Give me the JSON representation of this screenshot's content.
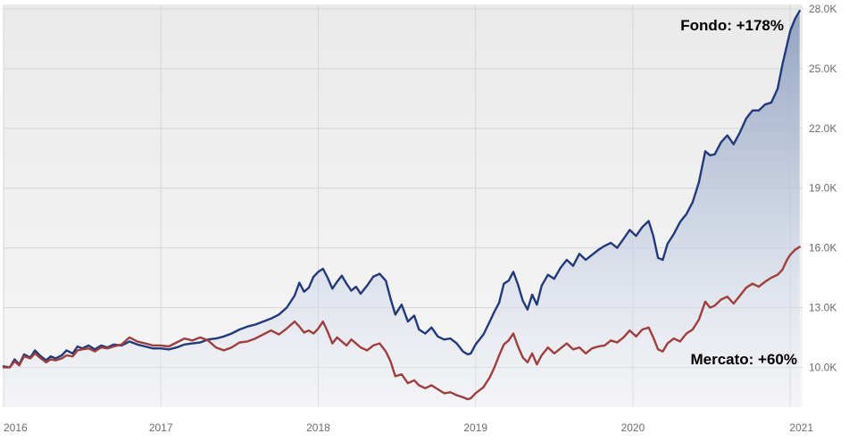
{
  "chart_data": {
    "type": "line",
    "title": "",
    "xlabel": "",
    "ylabel": "",
    "xlim": [
      2016.0,
      2021.07
    ],
    "ylim": [
      8000,
      28000
    ],
    "grid": true,
    "x_ticks": [
      {
        "value": 2016,
        "label": "2016"
      },
      {
        "value": 2017,
        "label": "2017"
      },
      {
        "value": 2018,
        "label": "2018"
      },
      {
        "value": 2019,
        "label": "2019"
      },
      {
        "value": 2020,
        "label": "2020"
      },
      {
        "value": 2021,
        "label": "2021"
      }
    ],
    "y_ticks": [
      {
        "value": 10000,
        "label": "10.0K"
      },
      {
        "value": 13000,
        "label": "13.0K"
      },
      {
        "value": 16000,
        "label": "16.0K"
      },
      {
        "value": 19000,
        "label": "19.0K"
      },
      {
        "value": 22000,
        "label": "22.0K"
      },
      {
        "value": 25000,
        "label": "25.0K"
      },
      {
        "value": 28000,
        "label": "28.0K"
      }
    ],
    "series": [
      {
        "key": "fondo",
        "color": "#233a7a",
        "fill": true,
        "points": [
          [
            2016.0,
            10050
          ],
          [
            2016.04,
            10000
          ],
          [
            2016.07,
            10400
          ],
          [
            2016.1,
            10150
          ],
          [
            2016.13,
            10650
          ],
          [
            2016.17,
            10500
          ],
          [
            2016.2,
            10850
          ],
          [
            2016.23,
            10600
          ],
          [
            2016.27,
            10350
          ],
          [
            2016.3,
            10550
          ],
          [
            2016.33,
            10450
          ],
          [
            2016.37,
            10600
          ],
          [
            2016.4,
            10850
          ],
          [
            2016.44,
            10700
          ],
          [
            2016.47,
            11050
          ],
          [
            2016.5,
            10950
          ],
          [
            2016.54,
            11100
          ],
          [
            2016.58,
            10900
          ],
          [
            2016.62,
            11100
          ],
          [
            2016.66,
            11000
          ],
          [
            2016.7,
            11150
          ],
          [
            2016.75,
            11100
          ],
          [
            2016.8,
            11300
          ],
          [
            2016.85,
            11150
          ],
          [
            2016.9,
            11050
          ],
          [
            2016.95,
            10950
          ],
          [
            2017.0,
            10950
          ],
          [
            2017.05,
            10900
          ],
          [
            2017.1,
            11000
          ],
          [
            2017.15,
            11150
          ],
          [
            2017.2,
            11200
          ],
          [
            2017.25,
            11250
          ],
          [
            2017.3,
            11400
          ],
          [
            2017.35,
            11450
          ],
          [
            2017.4,
            11550
          ],
          [
            2017.45,
            11700
          ],
          [
            2017.5,
            11900
          ],
          [
            2017.55,
            12050
          ],
          [
            2017.6,
            12150
          ],
          [
            2017.65,
            12300
          ],
          [
            2017.7,
            12450
          ],
          [
            2017.75,
            12650
          ],
          [
            2017.8,
            13000
          ],
          [
            2017.85,
            13600
          ],
          [
            2017.88,
            14250
          ],
          [
            2017.91,
            13800
          ],
          [
            2017.94,
            14000
          ],
          [
            2017.97,
            14550
          ],
          [
            2018.0,
            14800
          ],
          [
            2018.03,
            14950
          ],
          [
            2018.06,
            14500
          ],
          [
            2018.09,
            13950
          ],
          [
            2018.12,
            14300
          ],
          [
            2018.15,
            14600
          ],
          [
            2018.18,
            14200
          ],
          [
            2018.21,
            13850
          ],
          [
            2018.24,
            14050
          ],
          [
            2018.27,
            13700
          ],
          [
            2018.31,
            14100
          ],
          [
            2018.35,
            14550
          ],
          [
            2018.39,
            14700
          ],
          [
            2018.43,
            14350
          ],
          [
            2018.46,
            13450
          ],
          [
            2018.49,
            12650
          ],
          [
            2018.53,
            13150
          ],
          [
            2018.57,
            12300
          ],
          [
            2018.61,
            12600
          ],
          [
            2018.64,
            11900
          ],
          [
            2018.68,
            11700
          ],
          [
            2018.72,
            12000
          ],
          [
            2018.76,
            11550
          ],
          [
            2018.8,
            11400
          ],
          [
            2018.84,
            11450
          ],
          [
            2018.88,
            11200
          ],
          [
            2018.92,
            10800
          ],
          [
            2018.95,
            10650
          ],
          [
            2018.97,
            10700
          ],
          [
            2019.0,
            11150
          ],
          [
            2019.05,
            11650
          ],
          [
            2019.09,
            12300
          ],
          [
            2019.12,
            12800
          ],
          [
            2019.15,
            13250
          ],
          [
            2019.18,
            14200
          ],
          [
            2019.21,
            14350
          ],
          [
            2019.24,
            14800
          ],
          [
            2019.27,
            14150
          ],
          [
            2019.3,
            13350
          ],
          [
            2019.33,
            12900
          ],
          [
            2019.36,
            13650
          ],
          [
            2019.39,
            13150
          ],
          [
            2019.42,
            14100
          ],
          [
            2019.46,
            14650
          ],
          [
            2019.5,
            14450
          ],
          [
            2019.54,
            15000
          ],
          [
            2019.58,
            15400
          ],
          [
            2019.62,
            15100
          ],
          [
            2019.66,
            15700
          ],
          [
            2019.7,
            15400
          ],
          [
            2019.74,
            15650
          ],
          [
            2019.78,
            15900
          ],
          [
            2019.82,
            16100
          ],
          [
            2019.86,
            16250
          ],
          [
            2019.9,
            16000
          ],
          [
            2019.94,
            16450
          ],
          [
            2019.98,
            16900
          ],
          [
            2020.02,
            16600
          ],
          [
            2020.06,
            17050
          ],
          [
            2020.1,
            17350
          ],
          [
            2020.13,
            16600
          ],
          [
            2020.16,
            15500
          ],
          [
            2020.19,
            15400
          ],
          [
            2020.22,
            16200
          ],
          [
            2020.26,
            16700
          ],
          [
            2020.3,
            17300
          ],
          [
            2020.34,
            17700
          ],
          [
            2020.38,
            18300
          ],
          [
            2020.42,
            19300
          ],
          [
            2020.46,
            20850
          ],
          [
            2020.49,
            20650
          ],
          [
            2020.52,
            20700
          ],
          [
            2020.56,
            21300
          ],
          [
            2020.6,
            21650
          ],
          [
            2020.64,
            21200
          ],
          [
            2020.68,
            21800
          ],
          [
            2020.72,
            22500
          ],
          [
            2020.76,
            22900
          ],
          [
            2020.8,
            22900
          ],
          [
            2020.84,
            23200
          ],
          [
            2020.88,
            23300
          ],
          [
            2020.92,
            24000
          ],
          [
            2020.95,
            25200
          ],
          [
            2020.98,
            26200
          ],
          [
            2021.0,
            26900
          ],
          [
            2021.03,
            27500
          ],
          [
            2021.06,
            27900
          ]
        ]
      },
      {
        "key": "mercato",
        "color": "#9e3f3f",
        "fill": false,
        "points": [
          [
            2016.0,
            10000
          ],
          [
            2016.04,
            10000
          ],
          [
            2016.07,
            10300
          ],
          [
            2016.1,
            10100
          ],
          [
            2016.13,
            10550
          ],
          [
            2016.17,
            10450
          ],
          [
            2016.2,
            10700
          ],
          [
            2016.23,
            10500
          ],
          [
            2016.27,
            10250
          ],
          [
            2016.3,
            10400
          ],
          [
            2016.33,
            10350
          ],
          [
            2016.37,
            10450
          ],
          [
            2016.4,
            10600
          ],
          [
            2016.44,
            10550
          ],
          [
            2016.47,
            10850
          ],
          [
            2016.5,
            10900
          ],
          [
            2016.54,
            10950
          ],
          [
            2016.58,
            10800
          ],
          [
            2016.62,
            11000
          ],
          [
            2016.66,
            10950
          ],
          [
            2016.7,
            11050
          ],
          [
            2016.75,
            11150
          ],
          [
            2016.8,
            11500
          ],
          [
            2016.85,
            11300
          ],
          [
            2016.9,
            11200
          ],
          [
            2016.95,
            11100
          ],
          [
            2017.0,
            11100
          ],
          [
            2017.05,
            11050
          ],
          [
            2017.1,
            11250
          ],
          [
            2017.15,
            11450
          ],
          [
            2017.2,
            11350
          ],
          [
            2017.25,
            11500
          ],
          [
            2017.3,
            11350
          ],
          [
            2017.35,
            11000
          ],
          [
            2017.4,
            10850
          ],
          [
            2017.45,
            11000
          ],
          [
            2017.5,
            11250
          ],
          [
            2017.55,
            11300
          ],
          [
            2017.6,
            11450
          ],
          [
            2017.65,
            11650
          ],
          [
            2017.7,
            11850
          ],
          [
            2017.75,
            11650
          ],
          [
            2017.8,
            11950
          ],
          [
            2017.85,
            12300
          ],
          [
            2017.88,
            12050
          ],
          [
            2017.91,
            11750
          ],
          [
            2017.94,
            11850
          ],
          [
            2017.97,
            11700
          ],
          [
            2018.0,
            11950
          ],
          [
            2018.03,
            12300
          ],
          [
            2018.06,
            11800
          ],
          [
            2018.09,
            11200
          ],
          [
            2018.12,
            11500
          ],
          [
            2018.15,
            11300
          ],
          [
            2018.18,
            11100
          ],
          [
            2018.21,
            11400
          ],
          [
            2018.24,
            11200
          ],
          [
            2018.27,
            11000
          ],
          [
            2018.31,
            10850
          ],
          [
            2018.35,
            11100
          ],
          [
            2018.39,
            11200
          ],
          [
            2018.43,
            10800
          ],
          [
            2018.46,
            10300
          ],
          [
            2018.49,
            9550
          ],
          [
            2018.53,
            9650
          ],
          [
            2018.57,
            9200
          ],
          [
            2018.61,
            9350
          ],
          [
            2018.64,
            9100
          ],
          [
            2018.68,
            8950
          ],
          [
            2018.72,
            9100
          ],
          [
            2018.76,
            8900
          ],
          [
            2018.8,
            8700
          ],
          [
            2018.84,
            8750
          ],
          [
            2018.88,
            8600
          ],
          [
            2018.92,
            8500
          ],
          [
            2018.95,
            8400
          ],
          [
            2018.97,
            8450
          ],
          [
            2019.0,
            8700
          ],
          [
            2019.05,
            9000
          ],
          [
            2019.09,
            9500
          ],
          [
            2019.12,
            10000
          ],
          [
            2019.15,
            10600
          ],
          [
            2019.18,
            11150
          ],
          [
            2019.21,
            11350
          ],
          [
            2019.24,
            11700
          ],
          [
            2019.27,
            11050
          ],
          [
            2019.3,
            10500
          ],
          [
            2019.33,
            10250
          ],
          [
            2019.36,
            10700
          ],
          [
            2019.39,
            10150
          ],
          [
            2019.42,
            10600
          ],
          [
            2019.46,
            11000
          ],
          [
            2019.5,
            10700
          ],
          [
            2019.54,
            10950
          ],
          [
            2019.58,
            11200
          ],
          [
            2019.62,
            10900
          ],
          [
            2019.66,
            11000
          ],
          [
            2019.7,
            10700
          ],
          [
            2019.74,
            10950
          ],
          [
            2019.78,
            11050
          ],
          [
            2019.82,
            11100
          ],
          [
            2019.86,
            11350
          ],
          [
            2019.9,
            11250
          ],
          [
            2019.94,
            11500
          ],
          [
            2019.98,
            11850
          ],
          [
            2020.02,
            11550
          ],
          [
            2020.06,
            11900
          ],
          [
            2020.1,
            12000
          ],
          [
            2020.13,
            11500
          ],
          [
            2020.16,
            10900
          ],
          [
            2020.19,
            10800
          ],
          [
            2020.22,
            11200
          ],
          [
            2020.26,
            11450
          ],
          [
            2020.3,
            11300
          ],
          [
            2020.34,
            11700
          ],
          [
            2020.38,
            11900
          ],
          [
            2020.42,
            12400
          ],
          [
            2020.46,
            13300
          ],
          [
            2020.49,
            13000
          ],
          [
            2020.52,
            13100
          ],
          [
            2020.56,
            13400
          ],
          [
            2020.6,
            13550
          ],
          [
            2020.64,
            13200
          ],
          [
            2020.68,
            13600
          ],
          [
            2020.72,
            14000
          ],
          [
            2020.76,
            14200
          ],
          [
            2020.8,
            14050
          ],
          [
            2020.84,
            14300
          ],
          [
            2020.88,
            14500
          ],
          [
            2020.92,
            14650
          ],
          [
            2020.95,
            14900
          ],
          [
            2020.98,
            15400
          ],
          [
            2021.0,
            15650
          ],
          [
            2021.03,
            15900
          ],
          [
            2021.06,
            16050
          ]
        ]
      }
    ],
    "annotations": [
      {
        "key": "fondo",
        "text": "Fondo: +178%"
      },
      {
        "key": "mercato",
        "text": "Mercato: +60%"
      }
    ]
  }
}
